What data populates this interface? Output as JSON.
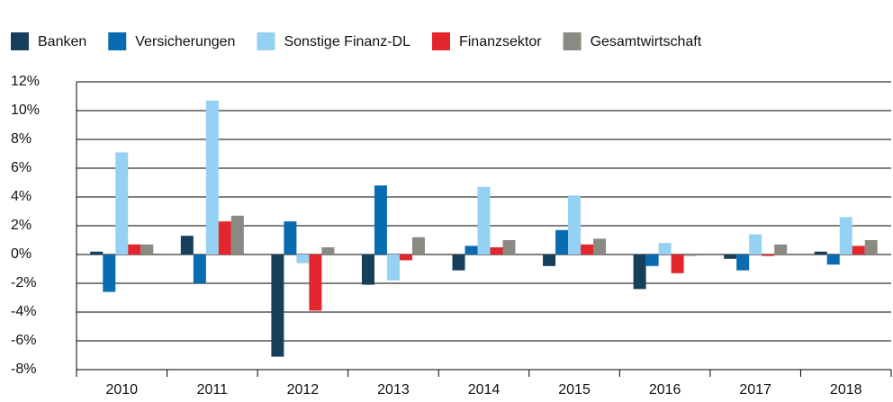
{
  "chart_data": {
    "type": "bar",
    "categories": [
      "2010",
      "2011",
      "2012",
      "2013",
      "2014",
      "2015",
      "2016",
      "2017",
      "2018"
    ],
    "series": [
      {
        "name": "Banken",
        "color": "#173e5a",
        "values": [
          0.2,
          1.3,
          -7.1,
          -2.1,
          -1.1,
          -0.8,
          -2.4,
          -0.3,
          0.2
        ]
      },
      {
        "name": "Versicherungen",
        "color": "#0a6cb0",
        "values": [
          -2.6,
          -2.0,
          2.3,
          4.8,
          0.6,
          1.7,
          -0.8,
          -1.1,
          -0.7
        ]
      },
      {
        "name": "Sonstige Finanz-DL",
        "color": "#95d1f2",
        "values": [
          7.1,
          10.7,
          -0.6,
          -1.8,
          4.7,
          4.1,
          0.8,
          1.4,
          2.6
        ]
      },
      {
        "name": "Finanzsektor",
        "color": "#e3262d",
        "values": [
          0.7,
          2.3,
          -3.9,
          -0.4,
          0.5,
          0.7,
          -1.3,
          -0.1,
          0.6
        ]
      },
      {
        "name": "Gesamtwirtschaft",
        "color": "#8a8a82",
        "values": [
          0.7,
          2.7,
          0.5,
          1.2,
          1.0,
          1.1,
          -0.1,
          0.7,
          1.0
        ]
      }
    ],
    "ylim": [
      -8,
      12
    ],
    "yticks": [
      {
        "value": -8,
        "label": "-8%"
      },
      {
        "value": -6,
        "label": "-6%"
      },
      {
        "value": -4,
        "label": "-4%"
      },
      {
        "value": -2,
        "label": "-2%"
      },
      {
        "value": 0,
        "label": "0%"
      },
      {
        "value": 2,
        "label": "2%"
      },
      {
        "value": 4,
        "label": "4%"
      },
      {
        "value": 6,
        "label": "6%"
      },
      {
        "value": 8,
        "label": "8%"
      },
      {
        "value": 10,
        "label": "10%"
      },
      {
        "value": 12,
        "label": "12%"
      }
    ],
    "grid": true,
    "legend": "top"
  }
}
